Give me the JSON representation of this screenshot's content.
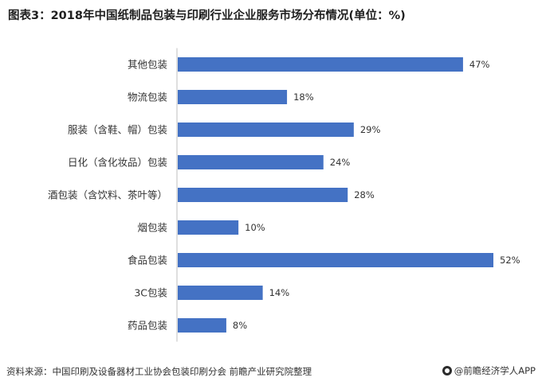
{
  "title": "图表3：2018年中国纸制品包装与印刷行业企业服务市场分布情况(单位：%)",
  "chart_data": {
    "type": "bar",
    "orientation": "horizontal",
    "categories": [
      "其他包装",
      "物流包装",
      "服装（含鞋、帽）包装",
      "日化（含化妆品）包装",
      "酒包装（含饮料、茶叶等）",
      "烟包装",
      "食品包装",
      "3C包装",
      "药品包装"
    ],
    "values": [
      47,
      18,
      29,
      24,
      28,
      10,
      52,
      14,
      8
    ],
    "value_labels": [
      "47%",
      "18%",
      "29%",
      "24%",
      "28%",
      "10%",
      "52%",
      "14%",
      "8%"
    ],
    "xlim": [
      0,
      52
    ],
    "grid": false,
    "bar_color": "#4472c4"
  },
  "footer": {
    "source": "资料来源：中国印刷及设备器材工业协会包装印刷分会 前瞻产业研究院整理",
    "brand": "@前瞻经济学人APP"
  }
}
